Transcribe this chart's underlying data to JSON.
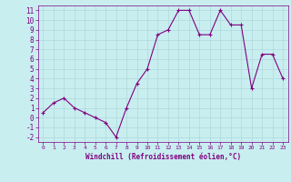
{
  "x": [
    0,
    1,
    2,
    3,
    4,
    5,
    6,
    7,
    8,
    9,
    10,
    11,
    12,
    13,
    14,
    15,
    16,
    17,
    18,
    19,
    20,
    21,
    22,
    23
  ],
  "y": [
    0.5,
    1.5,
    2.0,
    1.0,
    0.5,
    0.0,
    -0.5,
    -2.0,
    1.0,
    3.5,
    5.0,
    8.5,
    9.0,
    11.0,
    11.0,
    8.5,
    8.5,
    11.0,
    9.5,
    9.5,
    3.0,
    6.5,
    6.5,
    4.0
  ],
  "xlabel": "Windchill (Refroidissement éolien,°C)",
  "xlim_min": -0.5,
  "xlim_max": 23.5,
  "ylim_min": -2.5,
  "ylim_max": 11.5,
  "yticks": [
    -2,
    -1,
    0,
    1,
    2,
    3,
    4,
    5,
    6,
    7,
    8,
    9,
    10,
    11
  ],
  "xticks": [
    0,
    1,
    2,
    3,
    4,
    5,
    6,
    7,
    8,
    9,
    10,
    11,
    12,
    13,
    14,
    15,
    16,
    17,
    18,
    19,
    20,
    21,
    22,
    23
  ],
  "line_color": "#800080",
  "marker": "+",
  "bg_color": "#c8eef0",
  "grid_color": "#b0d8da",
  "tick_label_color": "#800080",
  "xlabel_color": "#800080",
  "axis_color": "#800080"
}
